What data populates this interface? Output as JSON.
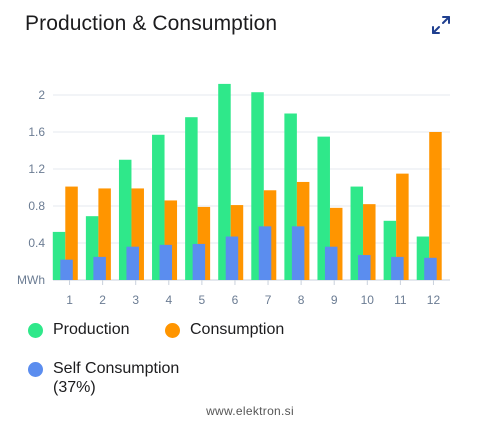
{
  "header": {
    "title": "Production & Consumption",
    "expand_icon": "expand-arrows-icon"
  },
  "legend": {
    "production_label": "Production",
    "consumption_label": "Consumption",
    "self_consumption_label": "Self Consumption",
    "self_consumption_percent": "(37%)"
  },
  "watermark": "www.elektron.si",
  "chart_data": {
    "type": "bar",
    "title": "Production & Consumption",
    "ylabel": "MWh",
    "xlabel": "",
    "categories": [
      "1",
      "2",
      "3",
      "4",
      "5",
      "6",
      "7",
      "8",
      "9",
      "10",
      "11",
      "12"
    ],
    "y_ticks": [
      "0.4",
      "0.8",
      "1.2",
      "1.6",
      "2"
    ],
    "ylim": [
      0,
      2.2
    ],
    "grid": true,
    "legend_position": "bottom",
    "series": [
      {
        "name": "Production",
        "color": "#2fe88a",
        "values": [
          0.52,
          0.69,
          1.3,
          1.57,
          1.76,
          2.12,
          2.03,
          1.8,
          1.55,
          1.01,
          0.64,
          0.47
        ]
      },
      {
        "name": "Consumption",
        "color": "#ff9500",
        "values": [
          1.01,
          0.99,
          0.99,
          0.86,
          0.79,
          0.81,
          0.97,
          1.06,
          0.78,
          0.82,
          1.15,
          1.6
        ]
      },
      {
        "name": "Self Consumption",
        "color": "#5b8def",
        "values": [
          0.22,
          0.25,
          0.36,
          0.38,
          0.39,
          0.47,
          0.58,
          0.58,
          0.36,
          0.27,
          0.25,
          0.24
        ]
      }
    ]
  }
}
